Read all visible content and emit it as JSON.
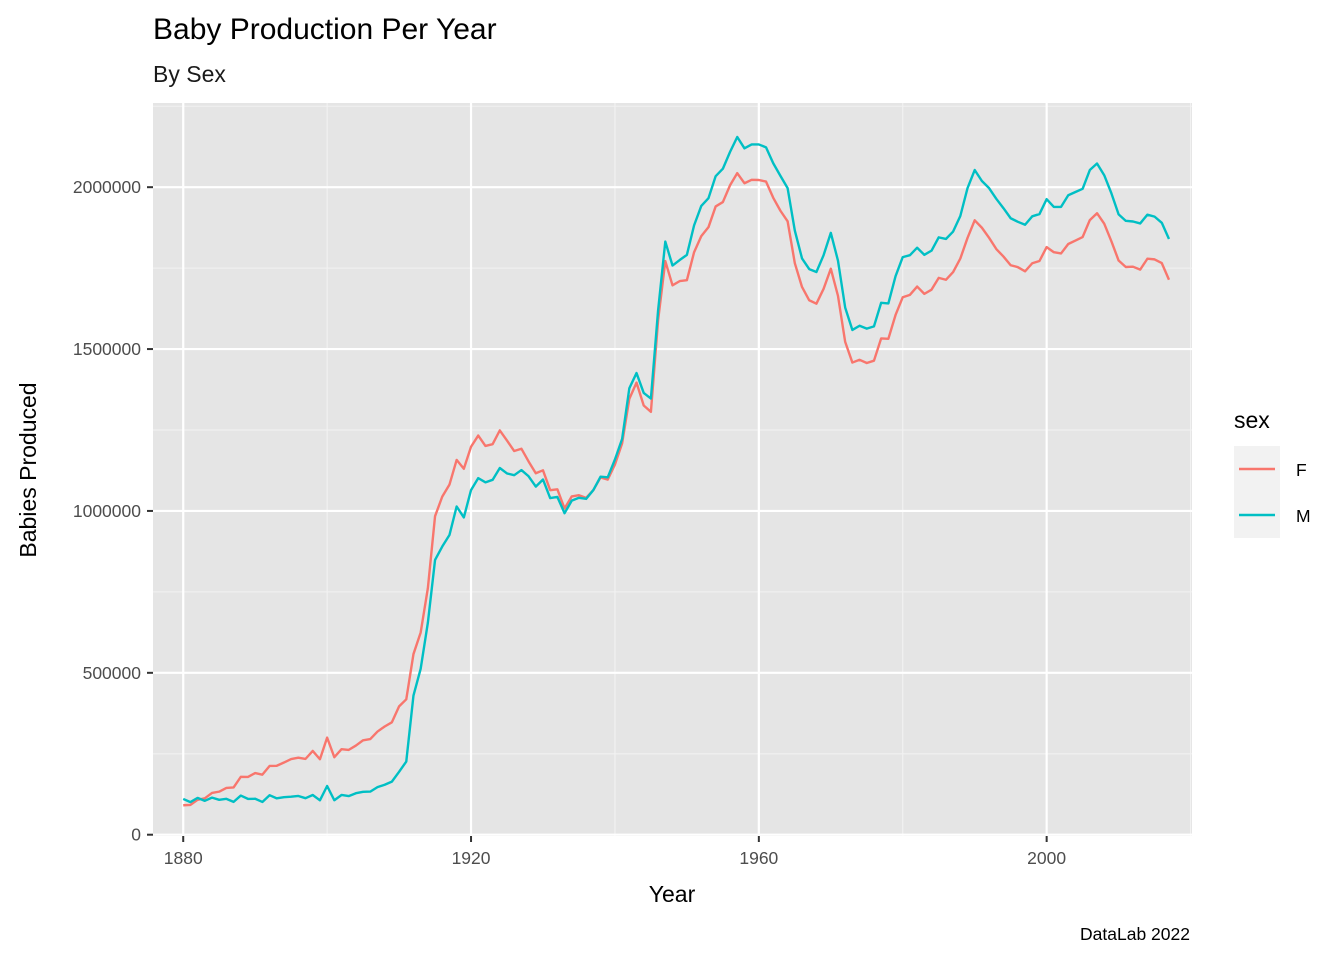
{
  "chart_data": {
    "type": "line",
    "title": "Baby Production Per Year",
    "subtitle": "By Sex",
    "xlabel": "Year",
    "ylabel": "Babies Produced",
    "caption": "DataLab 2022",
    "legend_title": "sex",
    "legend_position": "right",
    "xlim": [
      1875.8,
      2020.2
    ],
    "ylim": [
      -4000,
      2260000
    ],
    "x_ticks": [
      1880,
      1920,
      1960,
      2000
    ],
    "y_ticks": [
      0,
      500000,
      1000000,
      1500000,
      2000000
    ],
    "y_tick_labels": [
      "0",
      "500000",
      "1000000",
      "1500000",
      "2000000"
    ],
    "grid": true,
    "background": "#e5e5e5",
    "x_start": 1880,
    "series": [
      {
        "name": "F",
        "color": "#f8766d",
        "values": [
          90993,
          91954,
          107850,
          112321,
          129022,
          133055,
          144535,
          145982,
          178627,
          178366,
          190377,
          185482,
          212346,
          212906,
          222922,
          233630,
          237920,
          234202,
          258770,
          233023,
          299822,
          239351,
          264079,
          261973,
          275375,
          291641,
          295301,
          318558,
          334277,
          347191,
          396505,
          418180,
          557939,
          624317,
          761376,
          983824,
          1044249,
          1081194,
          1157585,
          1130149,
          1198214,
          1232845,
          1200796,
          1206239,
          1248821,
          1217270,
          1185078,
          1192207,
          1152836,
          1116284,
          1125521,
          1064233,
          1066930,
          1007558,
          1044934,
          1048513,
          1040492,
          1064510,
          1103457,
          1096711,
          1143417,
          1208817,
          1346271,
          1396468,
          1325736,
          1306213,
          1589151,
          1771848,
          1696812,
          1709905,
          1712791,
          1799105,
          1848893,
          1876436,
          1940564,
          1954064,
          2005994,
          2043312,
          2012180,
          2022751,
          2022167,
          2017287,
          1967286,
          1927227,
          1894663,
          1765221,
          1691754,
          1650691,
          1640092,
          1686089,
          1748140,
          1664258,
          1522161,
          1458307,
          1466851,
          1456949,
          1464066,
          1532850,
          1531590,
          1605271,
          1660145,
          1667471,
          1693015,
          1670467,
          1683407,
          1719914,
          1714019,
          1737846,
          1779478,
          1843214,
          1897785,
          1874689,
          1843608,
          1808960,
          1785680,
          1758873,
          1752961,
          1740180,
          1765003,
          1772030,
          1814922,
          1799070,
          1795361,
          1824519,
          1835008,
          1846053,
          1898408,
          1919497,
          1887234,
          1832925,
          1773440,
          1753500,
          1754424,
          1745339,
          1779000,
          1777000,
          1765500,
          1714000
        ]
      },
      {
        "name": "M",
        "color": "#00bfc4",
        "values": [
          110491,
          100743,
          113686,
          104627,
          114442,
          107799,
          110784,
          101414,
          120853,
          110584,
          111025,
          101196,
          122037,
          112319,
          115772,
          117398,
          119575,
          112758,
          122698,
          106218,
          150499,
          106472,
          122660,
          119233,
          128129,
          132319,
          133159,
          146838,
          154339,
          163983,
          194209,
          225936,
          429926,
          512482,
          654746,
          848647,
          890142,
          925630,
          1013720,
          980010,
          1064468,
          1101374,
          1088377,
          1096127,
          1132671,
          1115798,
          1110440,
          1126259,
          1107113,
          1075162,
          1097163,
          1039599,
          1043126,
          993002,
          1031842,
          1040686,
          1037300,
          1064484,
          1105855,
          1103991,
          1159019,
          1222484,
          1378986,
          1425887,
          1364498,
          1347069,
          1620000,
          1832000,
          1758000,
          1775000,
          1791000,
          1882000,
          1942000,
          1966000,
          2034000,
          2057000,
          2109000,
          2155000,
          2120000,
          2132000,
          2132000,
          2123000,
          2074000,
          2035000,
          1997000,
          1866000,
          1780000,
          1747000,
          1738000,
          1790000,
          1859000,
          1773000,
          1628000,
          1559000,
          1572000,
          1563000,
          1570000,
          1643000,
          1641000,
          1725000,
          1784000,
          1790000,
          1813000,
          1791000,
          1804000,
          1845000,
          1840000,
          1863000,
          1911000,
          1997000,
          2053000,
          2019000,
          1997000,
          1964000,
          1935000,
          1904000,
          1893000,
          1884000,
          1910000,
          1917000,
          1963000,
          1939000,
          1939000,
          1975000,
          1985000,
          1995000,
          2053000,
          2073000,
          2037000,
          1981000,
          1916000,
          1896000,
          1894000,
          1888000,
          1915000,
          1909000,
          1890000,
          1840000
        ]
      }
    ]
  }
}
